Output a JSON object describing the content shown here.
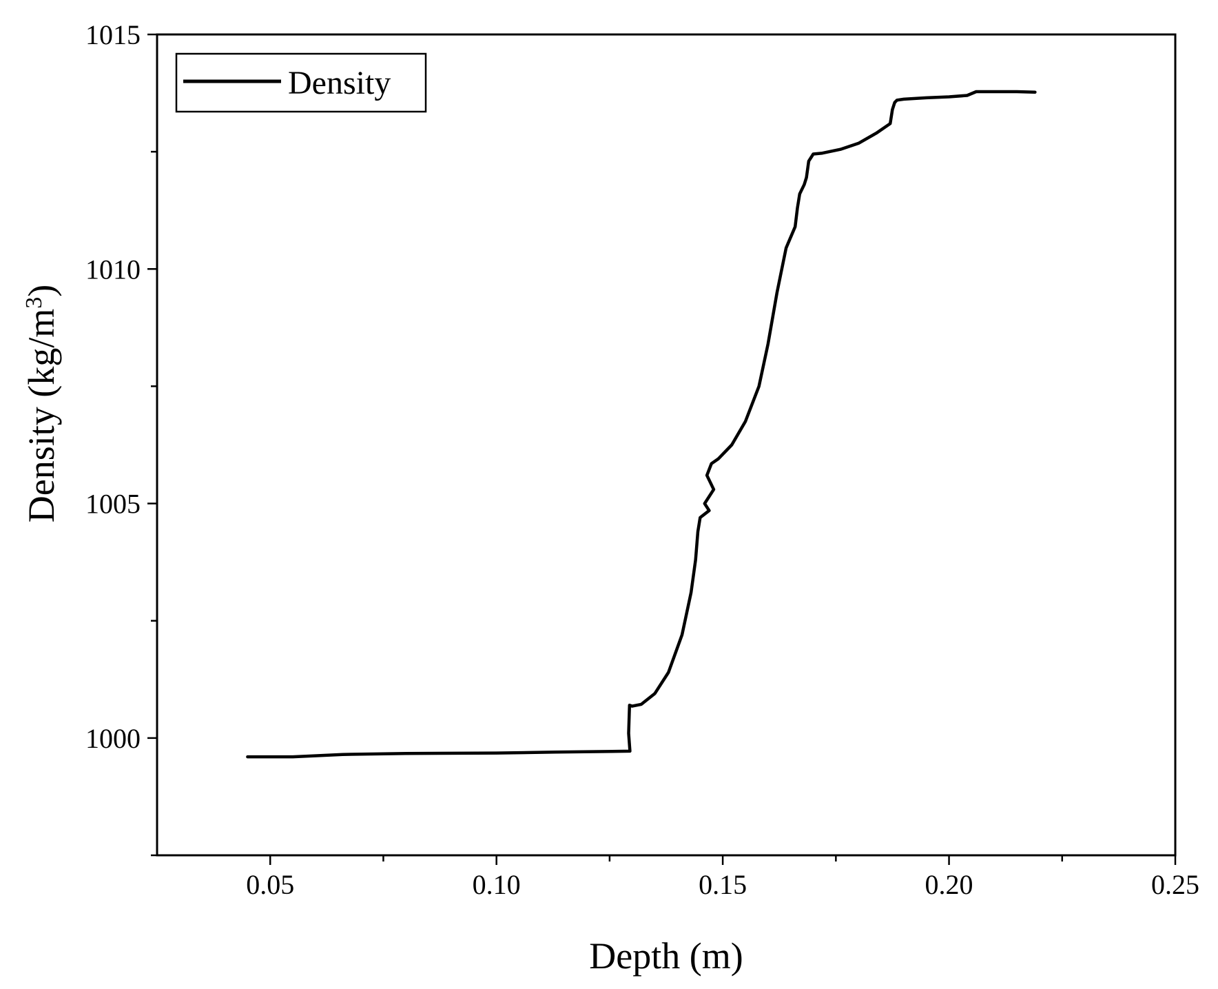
{
  "chart_data": {
    "type": "line",
    "title": "",
    "xlabel": "Depth (m)",
    "ylabel_main": "Density (kg/m",
    "ylabel_sup": "3",
    "ylabel_close": ")",
    "xlim": [
      0.025,
      0.25
    ],
    "ylim": [
      997.5,
      1015
    ],
    "x_ticks": [
      {
        "value": 0.05,
        "label": "0.05"
      },
      {
        "value": 0.1,
        "label": "0.10"
      },
      {
        "value": 0.15,
        "label": "0.15"
      },
      {
        "value": 0.2,
        "label": "0.20"
      },
      {
        "value": 0.25,
        "label": "0.25"
      }
    ],
    "x_minor_ticks": [
      0.075,
      0.125,
      0.175,
      0.225
    ],
    "y_ticks": [
      {
        "value": 1000,
        "label": "1000"
      },
      {
        "value": 1005,
        "label": "1005"
      },
      {
        "value": 1010,
        "label": "1010"
      },
      {
        "value": 1015,
        "label": "1015"
      }
    ],
    "y_minor_ticks": [
      997.5,
      1002.5,
      1007.5,
      1012.5
    ],
    "grid": false,
    "legend_position": "top-left",
    "series": [
      {
        "name": "Density",
        "color": "#000000",
        "x": [
          0.045,
          0.055,
          0.066,
          0.08,
          0.1,
          0.113,
          0.1295,
          0.1292,
          0.1294,
          0.13,
          0.132,
          0.135,
          0.138,
          0.141,
          0.143,
          0.144,
          0.1445,
          0.145,
          0.147,
          0.146,
          0.148,
          0.1465,
          0.1475,
          0.149,
          0.152,
          0.155,
          0.158,
          0.16,
          0.162,
          0.164,
          0.166,
          0.1665,
          0.167,
          0.168,
          0.1685,
          0.169,
          0.17,
          0.172,
          0.176,
          0.18,
          0.184,
          0.187,
          0.1875,
          0.188,
          0.1885,
          0.19,
          0.195,
          0.2,
          0.204,
          0.206,
          0.21,
          0.215,
          0.219
        ],
        "y": [
          999.6,
          999.6,
          999.65,
          999.67,
          999.68,
          999.7,
          999.72,
          1000.1,
          1000.7,
          1000.68,
          1000.72,
          1000.95,
          1001.4,
          1002.2,
          1003.1,
          1003.8,
          1004.4,
          1004.7,
          1004.85,
          1005.0,
          1005.3,
          1005.6,
          1005.85,
          1005.95,
          1006.25,
          1006.75,
          1007.5,
          1008.4,
          1009.5,
          1010.45,
          1010.9,
          1011.3,
          1011.6,
          1011.8,
          1011.95,
          1012.3,
          1012.45,
          1012.47,
          1012.55,
          1012.68,
          1012.9,
          1013.1,
          1013.4,
          1013.55,
          1013.6,
          1013.62,
          1013.65,
          1013.67,
          1013.7,
          1013.78,
          1013.78,
          1013.78,
          1013.77
        ]
      }
    ]
  }
}
